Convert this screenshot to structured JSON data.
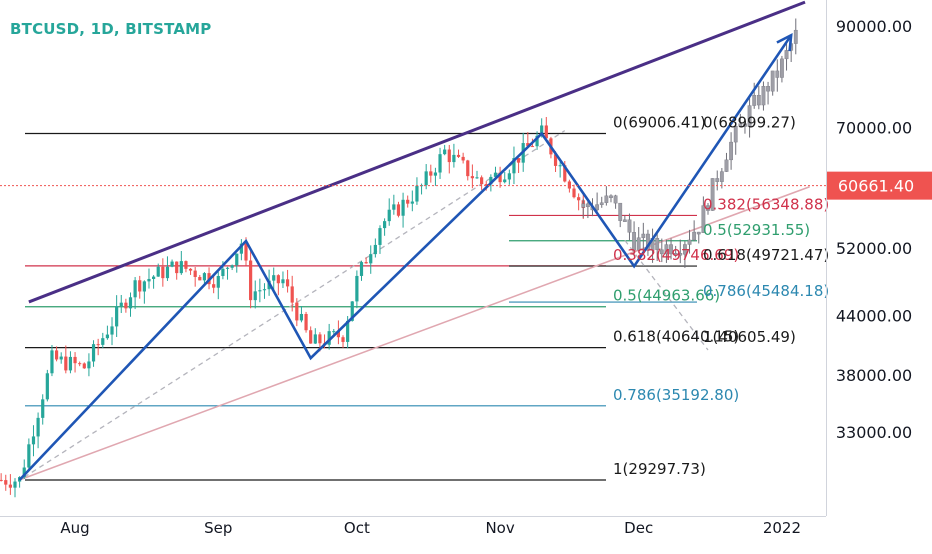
{
  "header": {
    "symbol": "BTCUSD, 1D, BITSTAMP"
  },
  "colors": {
    "symbol_title": "#26a69a",
    "candle_up": "#26a69a",
    "candle_down": "#ef5350",
    "projection_bars": "#9e9ea6",
    "channel_top": "#4a2f86",
    "zigzag": "#1f56b5",
    "fib_black": "#1a1a1a",
    "fib_red": "#d0324b",
    "fib_green": "#2f9e6e",
    "fib_blue": "#2c88b0",
    "support_line": "#e0a7b0",
    "current_price_bg": "#ef5350"
  },
  "current_price": {
    "label": "60661.40",
    "value": 60661.4
  },
  "chart_data": {
    "type": "candlestick",
    "title": "BTCUSD, 1D, BITSTAMP",
    "scale": "log",
    "ylim": [
      26800,
      96000
    ],
    "y_ticks": [
      {
        "value": 90000,
        "label": "90000.00"
      },
      {
        "value": 70000,
        "label": "70000.00"
      },
      {
        "value": 52000,
        "label": "52000.00"
      },
      {
        "value": 44000,
        "label": "44000.00"
      },
      {
        "value": 38000,
        "label": "38000.00"
      },
      {
        "value": 33000,
        "label": "33000.00"
      }
    ],
    "x_ticks": [
      "Aug",
      "Sep",
      "Oct",
      "Nov",
      "Dec",
      "2022"
    ],
    "price_path": [
      [
        "2021-07-20",
        29300
      ],
      [
        "2021-07-27",
        39500
      ],
      [
        "2021-08-03",
        38700
      ],
      [
        "2021-08-14",
        47500
      ],
      [
        "2021-08-23",
        49800
      ],
      [
        "2021-09-01",
        48000
      ],
      [
        "2021-09-06",
        52700
      ],
      [
        "2021-09-08",
        46500
      ],
      [
        "2021-09-15",
        48000
      ],
      [
        "2021-09-21",
        41000
      ],
      [
        "2021-09-28",
        42000
      ],
      [
        "2021-10-01",
        48000
      ],
      [
        "2021-10-06",
        55000
      ],
      [
        "2021-10-15",
        60500
      ],
      [
        "2021-10-20",
        66000
      ],
      [
        "2021-10-28",
        61000
      ],
      [
        "2021-11-02",
        63000
      ],
      [
        "2021-11-10",
        68999
      ],
      [
        "2021-11-17",
        60000
      ],
      [
        "2021-11-19",
        57500
      ]
    ],
    "projection_path": [
      [
        "2021-11-19",
        57500
      ],
      [
        "2021-11-25",
        58500
      ],
      [
        "2021-11-30",
        53000
      ],
      [
        "2021-12-05",
        52000
      ],
      [
        "2021-12-10",
        52500
      ],
      [
        "2021-12-14",
        55000
      ],
      [
        "2021-12-20",
        66000
      ],
      [
        "2021-12-25",
        73000
      ],
      [
        "2021-12-31",
        80000
      ],
      [
        "2022-01-04",
        88000
      ]
    ],
    "fib_retracements": [
      {
        "label": "0(69006.41)",
        "value": 69006.41
      },
      {
        "label": "0.382(49746.69)",
        "value": 49746.69
      },
      {
        "label": "0.5(44963.66)",
        "value": 44963.66
      },
      {
        "label": "0.618(40640.15)",
        "value": 40640.15
      },
      {
        "label": "0.786(35192.80)",
        "value": 35192.8
      },
      {
        "label": "1(29297.73)",
        "value": 29297.73
      }
    ],
    "fib_retracements_2": [
      {
        "label": "0(68999.27)",
        "value": 68999.27
      },
      {
        "label": "0.382(56348.88)",
        "value": 56348.88
      },
      {
        "label": "0.5(52931.55)",
        "value": 52931.55
      },
      {
        "label": "0.618(49721.47)",
        "value": 49721.47
      },
      {
        "label": "0.786(45484.18)",
        "value": 45484.18
      },
      {
        "label": "1(40605.49)",
        "value": 40605.49
      }
    ],
    "zigzag": [
      [
        "2021-07-20",
        29300
      ],
      [
        "2021-09-07",
        52900
      ],
      [
        "2021-09-21",
        39600
      ],
      [
        "2021-11-10",
        68999
      ],
      [
        "2021-11-30",
        49700
      ],
      [
        "2022-01-03",
        88000
      ]
    ],
    "channel_top": [
      [
        "2021-07-22",
        45500
      ],
      [
        "2022-01-06",
        95500
      ]
    ],
    "support_line": [
      [
        "2021-07-20",
        29300
      ],
      [
        "2022-01-07",
        60500
      ]
    ],
    "dashed_projection": [
      [
        "2021-07-21",
        29500
      ],
      [
        "2021-11-15",
        69500
      ]
    ],
    "dashed_projection_2": [
      [
        "2021-11-28",
        53000
      ],
      [
        "2021-12-16",
        40400
      ]
    ]
  }
}
